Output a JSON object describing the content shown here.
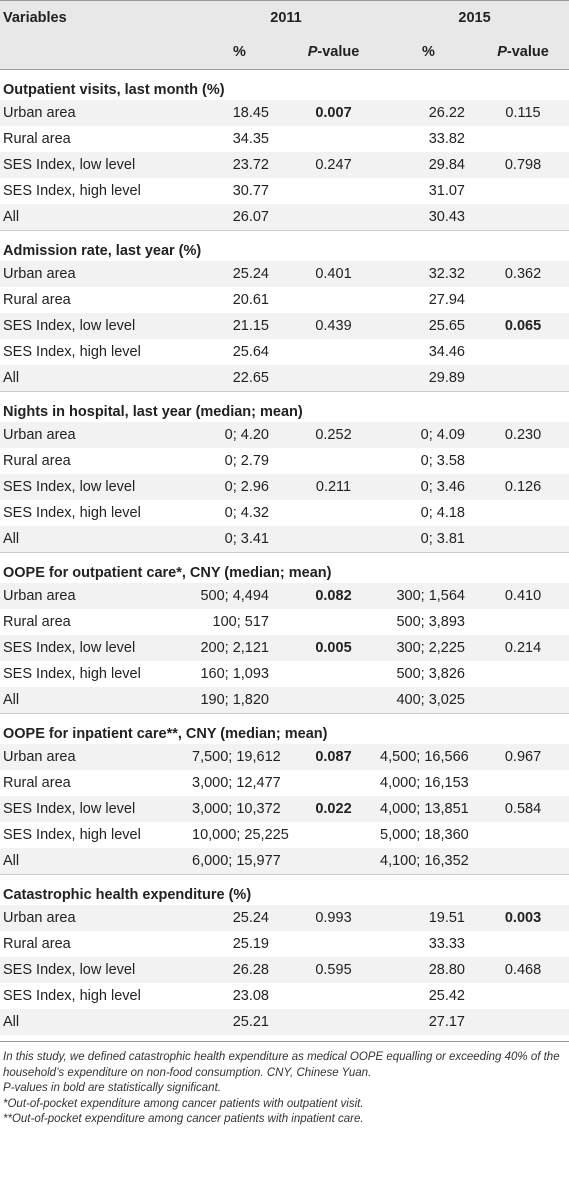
{
  "header": {
    "variables": "Variables",
    "year1": "2011",
    "year2": "2015",
    "pct": "%",
    "pvalue_p": "P",
    "pvalue_rest": "-value"
  },
  "sections": [
    {
      "title": "Outpatient visits, last month (%)",
      "rows": [
        {
          "label": "Urban area",
          "v2011": "18.45",
          "p2011": "0.007",
          "p2011_bold": true,
          "v2015": "26.22",
          "p2015": "0.115",
          "p2015_bold": false
        },
        {
          "label": "Rural area",
          "v2011": "34.35",
          "p2011": "",
          "p2011_bold": false,
          "v2015": "33.82",
          "p2015": "",
          "p2015_bold": false
        },
        {
          "label": "SES Index, low level",
          "v2011": "23.72",
          "p2011": "0.247",
          "p2011_bold": false,
          "v2015": "29.84",
          "p2015": "0.798",
          "p2015_bold": false
        },
        {
          "label": "SES Index, high level",
          "v2011": "30.77",
          "p2011": "",
          "p2011_bold": false,
          "v2015": "31.07",
          "p2015": "",
          "p2015_bold": false
        },
        {
          "label": "All",
          "v2011": "26.07",
          "p2011": "",
          "p2011_bold": false,
          "v2015": "30.43",
          "p2015": "",
          "p2015_bold": false
        }
      ]
    },
    {
      "title": "Admission rate, last year (%)",
      "rows": [
        {
          "label": "Urban area",
          "v2011": "25.24",
          "p2011": "0.401",
          "p2011_bold": false,
          "v2015": "32.32",
          "p2015": "0.362",
          "p2015_bold": false
        },
        {
          "label": "Rural area",
          "v2011": "20.61",
          "p2011": "",
          "p2011_bold": false,
          "v2015": "27.94",
          "p2015": "",
          "p2015_bold": false
        },
        {
          "label": "SES Index, low level",
          "v2011": "21.15",
          "p2011": "0.439",
          "p2011_bold": false,
          "v2015": "25.65",
          "p2015": "0.065",
          "p2015_bold": true
        },
        {
          "label": "SES Index, high level",
          "v2011": "25.64",
          "p2011": "",
          "p2011_bold": false,
          "v2015": "34.46",
          "p2015": "",
          "p2015_bold": false
        },
        {
          "label": "All",
          "v2011": "22.65",
          "p2011": "",
          "p2011_bold": false,
          "v2015": "29.89",
          "p2015": "",
          "p2015_bold": false
        }
      ]
    },
    {
      "title": "Nights in hospital, last year (median; mean)",
      "rows": [
        {
          "label": "Urban area",
          "v2011": "0; 4.20",
          "p2011": "0.252",
          "p2011_bold": false,
          "v2015": "0; 4.09",
          "p2015": "0.230",
          "p2015_bold": false
        },
        {
          "label": "Rural area",
          "v2011": "0; 2.79",
          "p2011": "",
          "p2011_bold": false,
          "v2015": "0; 3.58",
          "p2015": "",
          "p2015_bold": false
        },
        {
          "label": "SES Index, low level",
          "v2011": "0; 2.96",
          "p2011": "0.211",
          "p2011_bold": false,
          "v2015": "0; 3.46",
          "p2015": "0.126",
          "p2015_bold": false
        },
        {
          "label": "SES Index, high level",
          "v2011": "0; 4.32",
          "p2011": "",
          "p2011_bold": false,
          "v2015": "0; 4.18",
          "p2015": "",
          "p2015_bold": false
        },
        {
          "label": "All",
          "v2011": "0; 3.41",
          "p2011": "",
          "p2011_bold": false,
          "v2015": "0; 3.81",
          "p2015": "",
          "p2015_bold": false
        }
      ]
    },
    {
      "title": "OOPE for outpatient care*, CNY (median; mean)",
      "rows": [
        {
          "label": "Urban area",
          "v2011": "500; 4,494",
          "p2011": "0.082",
          "p2011_bold": true,
          "v2015": "300; 1,564",
          "p2015": "0.410",
          "p2015_bold": false
        },
        {
          "label": "Rural area",
          "v2011": "100; 517",
          "p2011": "",
          "p2011_bold": false,
          "v2015": "500; 3,893",
          "p2015": "",
          "p2015_bold": false
        },
        {
          "label": "SES Index, low level",
          "v2011": "200; 2,121",
          "p2011": "0.005",
          "p2011_bold": true,
          "v2015": "300; 2,225",
          "p2015": "0.214",
          "p2015_bold": false
        },
        {
          "label": "SES Index, high level",
          "v2011": "160; 1,093",
          "p2011": "",
          "p2011_bold": false,
          "v2015": "500; 3,826",
          "p2015": "",
          "p2015_bold": false
        },
        {
          "label": "All",
          "v2011": "190; 1,820",
          "p2011": "",
          "p2011_bold": false,
          "v2015": "400; 3,025",
          "p2015": "",
          "p2015_bold": false
        }
      ]
    },
    {
      "title": "OOPE for inpatient care**, CNY (median; mean)",
      "rows": [
        {
          "label": "Urban area",
          "v2011": "7,500; 19,612",
          "p2011": "0.087",
          "p2011_bold": true,
          "v2015": "4,500; 16,566",
          "p2015": "0.967",
          "p2015_bold": false
        },
        {
          "label": "Rural area",
          "v2011": "3,000; 12,477",
          "p2011": "",
          "p2011_bold": false,
          "v2015": "4,000; 16,153",
          "p2015": "",
          "p2015_bold": false
        },
        {
          "label": "SES Index, low level",
          "v2011": "3,000; 10,372",
          "p2011": "0.022",
          "p2011_bold": true,
          "v2015": "4,000; 13,851",
          "p2015": "0.584",
          "p2015_bold": false
        },
        {
          "label": "SES Index, high level",
          "v2011": "10,000; 25,225",
          "p2011": "",
          "p2011_bold": false,
          "v2015": "5,000; 18,360",
          "p2015": "",
          "p2015_bold": false
        },
        {
          "label": "All",
          "v2011": "6,000; 15,977",
          "p2011": "",
          "p2011_bold": false,
          "v2015": "4,100; 16,352",
          "p2015": "",
          "p2015_bold": false
        }
      ]
    },
    {
      "title": "Catastrophic health expenditure (%)",
      "rows": [
        {
          "label": "Urban area",
          "v2011": "25.24",
          "p2011": "0.993",
          "p2011_bold": false,
          "v2015": "19.51",
          "p2015": "0.003",
          "p2015_bold": true
        },
        {
          "label": "Rural area",
          "v2011": "25.19",
          "p2011": "",
          "p2011_bold": false,
          "v2015": "33.33",
          "p2015": "",
          "p2015_bold": false
        },
        {
          "label": "SES Index, low level",
          "v2011": "26.28",
          "p2011": "0.595",
          "p2011_bold": false,
          "v2015": "28.80",
          "p2015": "0.468",
          "p2015_bold": false
        },
        {
          "label": "SES Index, high level",
          "v2011": "23.08",
          "p2011": "",
          "p2011_bold": false,
          "v2015": "25.42",
          "p2015": "",
          "p2015_bold": false
        },
        {
          "label": "All",
          "v2011": "25.21",
          "p2011": "",
          "p2011_bold": false,
          "v2015": "27.17",
          "p2015": "",
          "p2015_bold": false
        }
      ]
    }
  ],
  "footnotes": {
    "definition": "In this study, we defined catastrophic health expenditure as medical OOPE equalling or exceeding 40% of the household’s expenditure on non-food consumption. CNY, Chinese Yuan.",
    "bold_note": "P-values in bold are statistically significant.",
    "outpatient_note": "*Out-of-pocket expenditure among cancer patients with outpatient visit.",
    "inpatient_note": "**Out-of-pocket expenditure among cancer patients with inpatient care."
  }
}
